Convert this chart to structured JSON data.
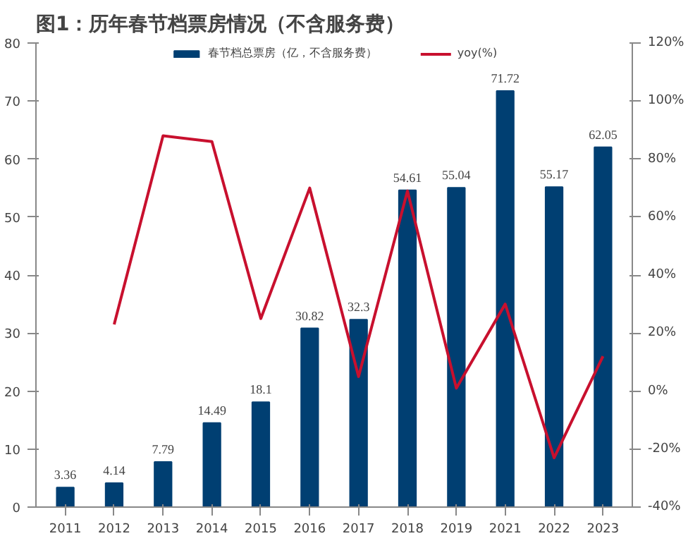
{
  "chart_data": {
    "type": "bar",
    "title": "图1：历年春节档票房情况（不含服务费）",
    "categories": [
      "2011",
      "2012",
      "2013",
      "2014",
      "2015",
      "2016",
      "2017",
      "2018",
      "2019",
      "2021",
      "2022",
      "2023"
    ],
    "series": [
      {
        "name": "春节档总票房（亿，不含服务费）",
        "type": "bar",
        "color": "#003f72",
        "values": [
          3.36,
          4.14,
          7.79,
          14.49,
          18.1,
          30.82,
          32.3,
          54.61,
          55.04,
          71.72,
          55.17,
          62.05
        ],
        "value_labels": [
          "3.36",
          "4.14",
          "7.79",
          "14.49",
          "18.1",
          "30.82",
          "32.3",
          "54.61",
          "55.04",
          "71.72",
          "55.17",
          "62.05"
        ]
      },
      {
        "name": "yoy(%)",
        "type": "line",
        "axis": "y2",
        "color": "#c8102e",
        "values": [
          null,
          23,
          88,
          86,
          25,
          70,
          5,
          69,
          1,
          30,
          -23,
          12
        ]
      }
    ],
    "ylim": [
      0,
      80
    ],
    "yticks": [
      0,
      10,
      20,
      30,
      40,
      50,
      60,
      70,
      80
    ],
    "y2lim": [
      -40,
      120
    ],
    "y2ticks": [
      {
        "value": -40,
        "label": "-40%"
      },
      {
        "value": -20,
        "label": "-20%"
      },
      {
        "value": 0,
        "label": "0%"
      },
      {
        "value": 20,
        "label": "20%"
      },
      {
        "value": 40,
        "label": "40%"
      },
      {
        "value": 60,
        "label": "60%"
      },
      {
        "value": 80,
        "label": "80%"
      },
      {
        "value": 100,
        "label": "100%"
      },
      {
        "value": 120,
        "label": "120%"
      }
    ],
    "grid": false,
    "legend": "top"
  }
}
